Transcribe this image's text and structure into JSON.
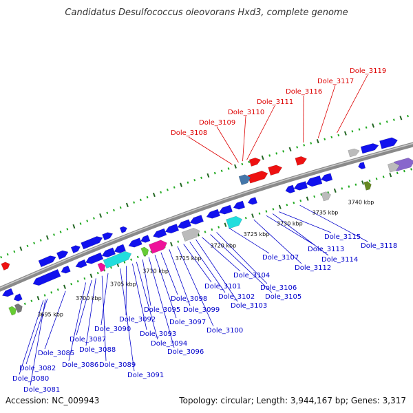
{
  "title": "Candidatus Desulfococcus oleovorans Hxd3, complete genome",
  "footer": {
    "accession": "Accession: NC_009943",
    "summary": "Topology: circular; Length: 3,944,167 bp; Genes: 3,317"
  },
  "colors": {
    "backbone": "#777777",
    "forward_ticks": "#22aa22",
    "minor_ticks": "#226622",
    "label_red": "#dd0000",
    "label_blue": "#0000cc",
    "gene_blue": "#1111ee",
    "gene_red": "#ee1111",
    "gene_cyan": "#22dddd",
    "gene_magenta": "#ee1199",
    "gene_green": "#66cc33",
    "gene_gray": "#bbbbbb",
    "gene_steelblue": "#4477aa",
    "gene_purple": "#8866cc",
    "gene_olive": "#668822"
  },
  "kbp_labels": [
    "3695 kbp",
    "3700 kbp",
    "3705 kbp",
    "3710 kbp",
    "3715 kbp",
    "3720 kbp",
    "3725 kbp",
    "3730 kbp",
    "3735 kbp",
    "3740 kbp"
  ],
  "forward_gene_labels": [
    "Dole_3108",
    "Dole_3109",
    "Dole_3110",
    "Dole_3111",
    "Dole_3116",
    "Dole_3117",
    "Dole_3119"
  ],
  "reverse_gene_labels": [
    "Dole_3081",
    "Dole_3080",
    "Dole_3082",
    "Dole_3085",
    "Dole_3086",
    "Dole_3087",
    "Dole_3088",
    "Dole_3089",
    "Dole_3090",
    "Dole_3091",
    "Dole_3092",
    "Dole_3093",
    "Dole_3094",
    "Dole_3095",
    "Dole_3096",
    "Dole_3097",
    "Dole_3098",
    "Dole_3099",
    "Dole_3100",
    "Dole_3101",
    "Dole_3102",
    "Dole_3103",
    "Dole_3104",
    "Dole_3105",
    "Dole_3106",
    "Dole_3107",
    "Dole_3112",
    "Dole_3113",
    "Dole_3114",
    "Dole_3115",
    "Dole_3118"
  ]
}
